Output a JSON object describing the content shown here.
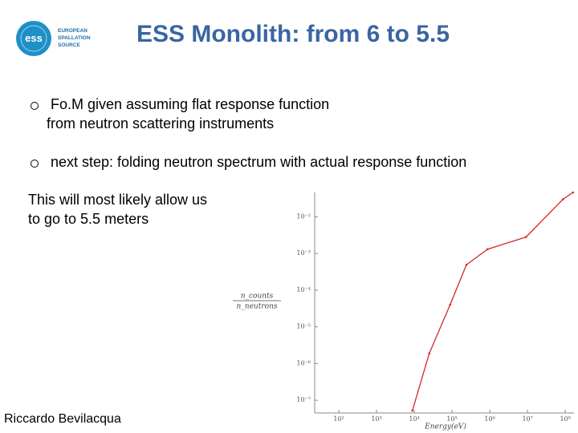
{
  "header": {
    "title": "ESS Monolith: from 6 to 5.5",
    "logo_mark": "ess",
    "logo_text": [
      "EUROPEAN",
      "SPALLATION",
      "SOURCE"
    ]
  },
  "bullets": [
    [
      "Fo.M given assuming flat response function",
      "from neutron scattering instruments"
    ],
    [
      "next step: folding neutron spectrum with actual response function"
    ]
  ],
  "note": [
    "This will most likely allow us",
    "to go to 5.5 meters"
  ],
  "author": "Riccardo Bevilacqua",
  "chart_data": {
    "type": "line",
    "xscale": "log",
    "yscale": "log",
    "xlabel": "Energy(eV)",
    "ylabel": {
      "numerator": "n_counts",
      "denominator": "n_neutrons"
    },
    "color": "#d62728",
    "x": [
      8900,
      25000,
      89000,
      240000,
      870000,
      9100000,
      87000000,
      160000000
    ],
    "values": [
      5.2e-08,
      1.9e-06,
      4e-05,
      0.00049,
      0.0013,
      0.0028,
      0.03,
      0.046
    ],
    "xlim": [
      23,
      170000000
    ],
    "ylim": [
      4.5e-08,
      0.046
    ],
    "xticks": [
      {
        "value": 100,
        "label": "10²"
      },
      {
        "value": 1000,
        "label": "10³"
      },
      {
        "value": 10000,
        "label": "10⁴"
      },
      {
        "value": 100000,
        "label": "10⁵"
      },
      {
        "value": 1000000,
        "label": "10⁶"
      },
      {
        "value": 10000000,
        "label": "10⁷"
      },
      {
        "value": 100000000,
        "label": "10⁸"
      }
    ],
    "yticks": [
      {
        "value": 0.01,
        "label": "10⁻²"
      },
      {
        "value": 0.001,
        "label": "10⁻³"
      },
      {
        "value": 0.0001,
        "label": "10⁻⁴"
      },
      {
        "value": 1e-05,
        "label": "10⁻⁵"
      },
      {
        "value": 1e-06,
        "label": "10⁻⁶"
      },
      {
        "value": 1e-07,
        "label": "10⁻⁷"
      }
    ]
  }
}
